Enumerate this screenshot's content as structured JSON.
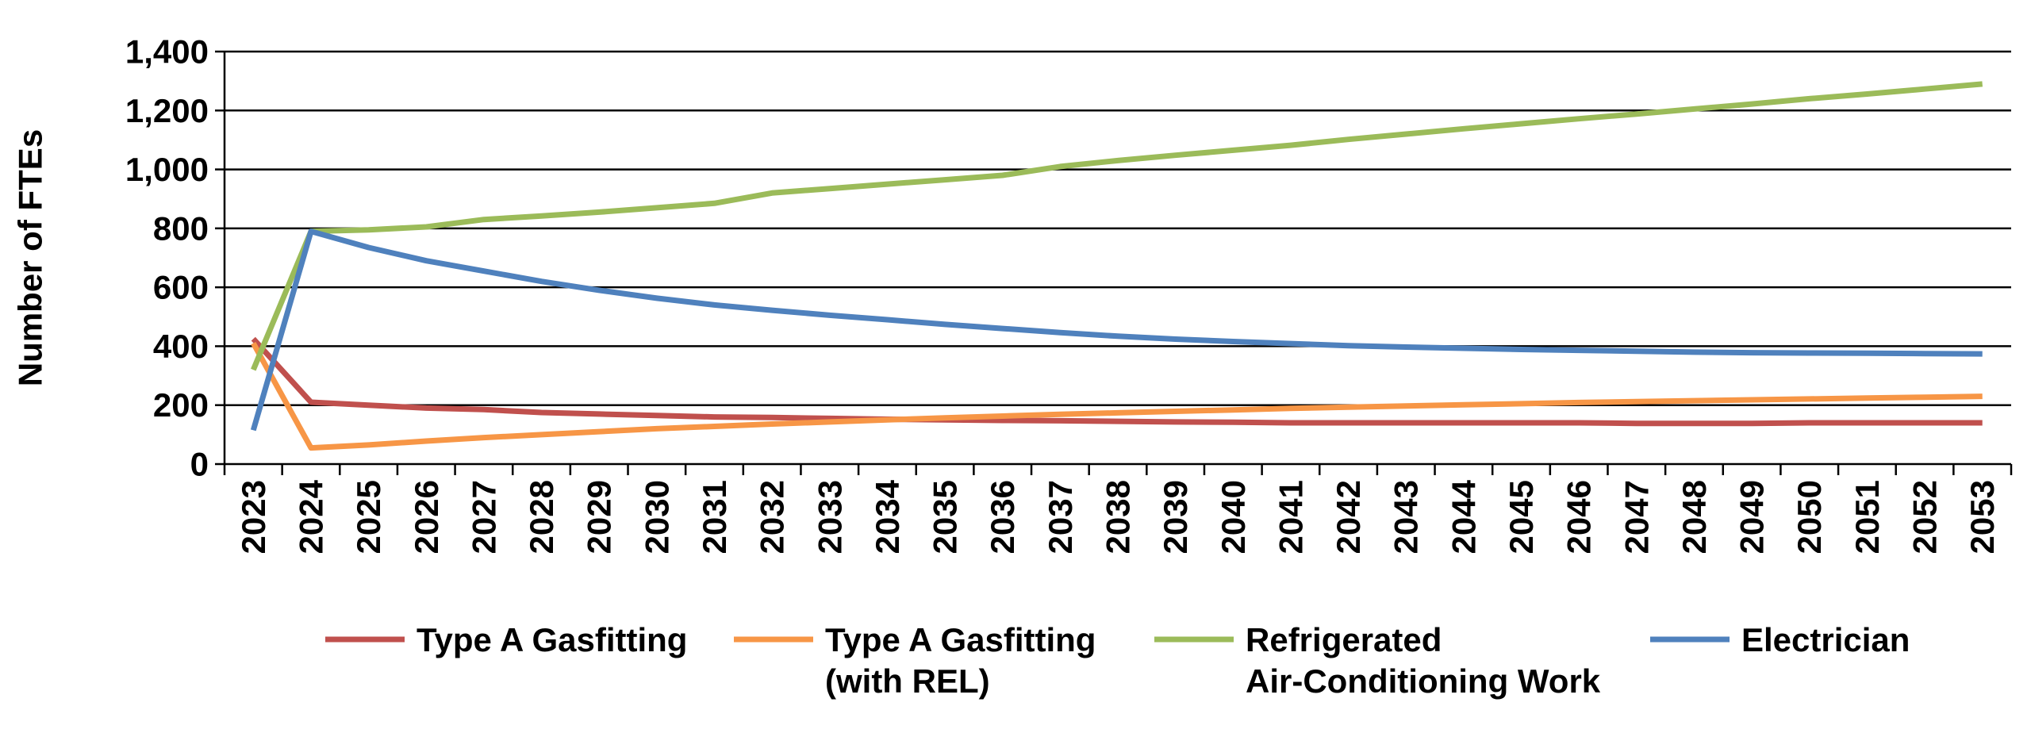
{
  "chart_data": {
    "type": "line",
    "title": "",
    "xlabel": "",
    "ylabel": "Number of FTEs",
    "ylim": [
      0,
      1400
    ],
    "yticks": [
      0,
      200,
      400,
      600,
      800,
      1000,
      1200,
      1400
    ],
    "ytick_labels": [
      "0",
      "200",
      "400",
      "600",
      "800",
      "1,000",
      "1,200",
      "1,400"
    ],
    "x": [
      "2023",
      "2024",
      "2025",
      "2026",
      "2027",
      "2028",
      "2029",
      "2030",
      "2031",
      "2032",
      "2033",
      "2034",
      "2035",
      "2036",
      "2037",
      "2038",
      "2039",
      "2040",
      "2041",
      "2042",
      "2043",
      "2044",
      "2045",
      "2046",
      "2047",
      "2048",
      "2049",
      "2050",
      "2051",
      "2052",
      "2053"
    ],
    "grid": "horizontal",
    "legend_position": "bottom",
    "series": [
      {
        "name": "Type A Gasfitting",
        "color": "#C0504D",
        "values": [
          425,
          210,
          200,
          190,
          185,
          175,
          170,
          165,
          160,
          158,
          155,
          152,
          150,
          148,
          147,
          145,
          143,
          142,
          140,
          140,
          140,
          140,
          140,
          140,
          138,
          138,
          138,
          140,
          140,
          140,
          140
        ]
      },
      {
        "name": "Type A Gasfitting (with REL)",
        "name_lines": [
          "Type A Gasfitting",
          "(with REL)"
        ],
        "color": "#F79646",
        "values": [
          410,
          55,
          65,
          78,
          90,
          100,
          110,
          120,
          128,
          136,
          143,
          150,
          157,
          163,
          169,
          174,
          179,
          184,
          189,
          193,
          197,
          201,
          205,
          209,
          212,
          215,
          218,
          221,
          224,
          227,
          230
        ]
      },
      {
        "name": "Refrigerated Air-Conditioning Work",
        "name_lines": [
          "Refrigerated",
          "Air-Conditioning Work"
        ],
        "color": "#9BBB59",
        "values": [
          320,
          790,
          795,
          805,
          830,
          842,
          855,
          870,
          885,
          920,
          935,
          950,
          965,
          980,
          1010,
          1030,
          1048,
          1065,
          1082,
          1102,
          1120,
          1138,
          1155,
          1172,
          1188,
          1205,
          1222,
          1240,
          1256,
          1273,
          1290
        ]
      },
      {
        "name": "Electrician",
        "color": "#4F81BD",
        "values": [
          115,
          790,
          735,
          690,
          655,
          620,
          590,
          563,
          540,
          522,
          505,
          490,
          474,
          460,
          446,
          434,
          424,
          416,
          409,
          402,
          397,
          393,
          389,
          386,
          383,
          380,
          378,
          377,
          376,
          375,
          374
        ]
      }
    ]
  }
}
